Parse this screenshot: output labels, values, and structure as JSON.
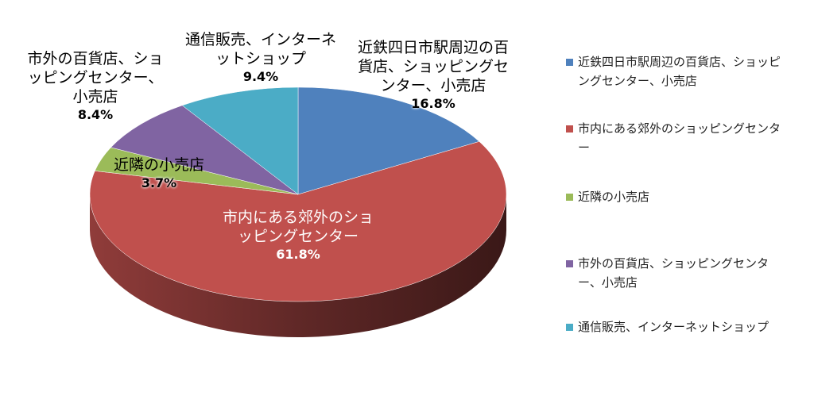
{
  "chart_data": {
    "type": "pie",
    "categories": [
      "近鉄四日市駅周辺の百貨店、ショッピングセンター、小売店",
      "市内にある郊外のショッピングセンター",
      "近隣の小売店",
      "市外の百貨店、ショッピングセンター、小売店",
      "通信販売、インターネットショップ"
    ],
    "values": [
      16.8,
      61.8,
      3.7,
      8.4,
      9.4
    ],
    "value_labels": [
      "16.8%",
      "61.8%",
      "3.7%",
      "8.4%",
      "9.4%"
    ],
    "colors": [
      "#4f81bd",
      "#c0504d",
      "#9bbb59",
      "#8064a2",
      "#4bacc6"
    ],
    "legend": "right"
  }
}
